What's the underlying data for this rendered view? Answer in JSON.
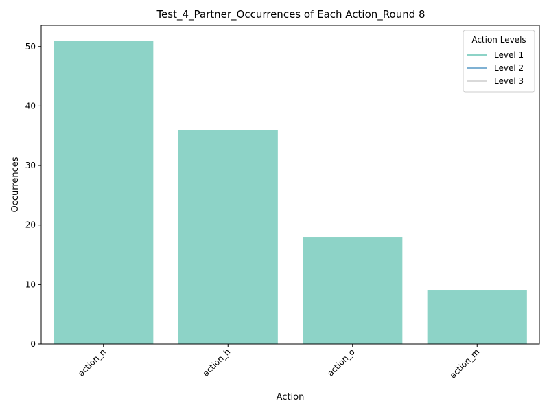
{
  "chart_data": {
    "type": "bar",
    "title": "Test_4_Partner_Occurrences of Each Action_Round 8",
    "xlabel": "Action",
    "ylabel": "Occurrences",
    "categories": [
      "action_n",
      "action_h",
      "action_o",
      "action_m"
    ],
    "values": [
      51,
      36,
      18,
      9
    ],
    "bar_color": "#8dd3c7",
    "ylim": [
      0,
      53.55
    ],
    "yticks": [
      0,
      10,
      20,
      30,
      40,
      50
    ],
    "grid": false,
    "legend": {
      "title": "Action Levels",
      "placement": "top-right",
      "entries": [
        {
          "label": "Level 1",
          "color": "#8dd3c7"
        },
        {
          "label": "Level 2",
          "color": "#7fb1d3"
        },
        {
          "label": "Level 3",
          "color": "#d9d9d9"
        }
      ]
    }
  }
}
